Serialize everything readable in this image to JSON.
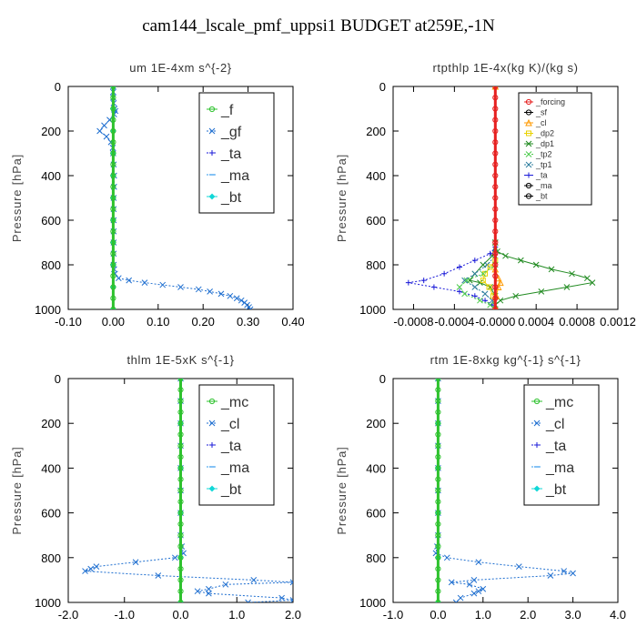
{
  "figure_title": "cam144_lscale_pmf_uppsi1  BUDGET at259E,-1N",
  "chart_data": [
    {
      "id": "um",
      "type": "line",
      "title": "um   1E-4xm s^{-2}",
      "ylabel": "Pressure [hPa]",
      "xlim": [
        -0.1,
        0.4
      ],
      "ylim": [
        1000,
        0
      ],
      "xticks": [
        "-0.10",
        "0.00",
        "0.10",
        "0.20",
        "0.30",
        "0.40"
      ],
      "xtick_values": [
        -0.1,
        0.0,
        0.1,
        0.2,
        0.3,
        0.4
      ],
      "yticks": [
        0,
        200,
        400,
        600,
        800,
        1000
      ],
      "legend": {
        "position": "top-right",
        "size": "large",
        "entries": [
          "_f",
          "_gf",
          "_ta",
          "_ma",
          "_bt"
        ]
      },
      "series": [
        {
          "name": "_gf",
          "color": "#1f6fd0",
          "marker": "x",
          "dashed": true,
          "y": [
            0,
            25,
            50,
            75,
            100,
            110,
            125,
            150,
            175,
            200,
            225,
            250,
            275,
            300,
            350,
            400,
            450,
            500,
            550,
            600,
            650,
            700,
            750,
            800,
            820,
            840,
            860,
            870,
            880,
            890,
            900,
            910,
            920,
            930,
            940,
            950,
            960,
            970,
            980,
            990,
            1000
          ],
          "x": [
            0.0,
            0.0,
            0.0,
            0.001,
            0.003,
            0.005,
            0.002,
            -0.008,
            -0.02,
            -0.03,
            -0.015,
            -0.005,
            -0.001,
            0.0,
            0.001,
            0.002,
            0.002,
            0.001,
            0.001,
            0.001,
            0.001,
            0.001,
            0.001,
            0.001,
            0.002,
            0.004,
            0.012,
            0.035,
            0.07,
            0.11,
            0.15,
            0.19,
            0.215,
            0.24,
            0.26,
            0.275,
            0.285,
            0.292,
            0.298,
            0.302,
            0.305
          ]
        },
        {
          "name": "_ta",
          "color": "#1a1ad8",
          "marker": "plus",
          "dashed": true,
          "y": [
            0,
            100,
            200,
            300,
            400,
            500,
            600,
            700,
            800,
            900,
            1000
          ],
          "x": [
            0,
            0,
            0,
            0,
            0,
            0,
            0,
            0,
            0,
            0,
            0
          ]
        },
        {
          "name": "_ma",
          "color": "#3399ee",
          "marker": "dash",
          "dashed": true,
          "y": [
            0,
            100,
            200,
            300,
            400,
            500,
            600,
            700,
            800,
            900,
            1000
          ],
          "x": [
            0,
            0,
            0,
            0,
            0,
            0,
            0,
            0,
            0,
            0,
            0
          ]
        },
        {
          "name": "_bt",
          "color": "#11d7d7",
          "marker": "diamond",
          "dashed": false,
          "y": [
            0,
            100,
            200,
            300,
            400,
            500,
            600,
            700,
            800,
            900,
            1000
          ],
          "x": [
            0,
            0,
            0,
            0,
            0,
            0,
            0,
            0,
            0,
            0,
            0
          ]
        },
        {
          "name": "_f",
          "color": "#2ec22e",
          "marker": "circle",
          "dashed": false,
          "width": 3,
          "y": [
            0,
            50,
            100,
            150,
            200,
            250,
            300,
            350,
            400,
            450,
            500,
            550,
            600,
            650,
            700,
            750,
            800,
            850,
            900,
            950,
            1000
          ],
          "x": [
            0,
            0,
            0,
            0,
            0,
            0,
            0,
            0,
            0,
            0,
            0,
            0,
            0,
            0,
            0,
            0,
            0,
            0,
            0,
            0,
            0
          ]
        }
      ]
    },
    {
      "id": "rtpthlp",
      "type": "line",
      "title": "rtpthlp   1E-4x(kg K)/(kg s)",
      "ylabel": "Pressure [hPa]",
      "xlim": [
        -0.001,
        0.0012
      ],
      "ylim": [
        1000,
        0
      ],
      "xticks": [
        "-0.0008",
        "-0.0004",
        "-0.0000",
        "0.0004",
        "0.0008",
        "0.0012"
      ],
      "xtick_values": [
        -0.0008,
        -0.0004,
        0.0,
        0.0004,
        0.0008,
        0.0012
      ],
      "yticks": [
        0,
        200,
        400,
        600,
        800,
        1000
      ],
      "legend": {
        "position": "top-right",
        "size": "small",
        "entries": [
          "_forcing",
          "_sf",
          "_cl",
          "_dp2",
          "_dp1",
          "_tp2",
          "_tp1",
          "_ta",
          "_ma",
          "_bt"
        ]
      },
      "series": [
        {
          "name": "_dp1",
          "color": "#228b22",
          "marker": "x",
          "dashed": false,
          "y": [
            0,
            700,
            740,
            760,
            780,
            800,
            820,
            840,
            860,
            880,
            900,
            920,
            940,
            960,
            980,
            1000
          ],
          "x": [
            0,
            0,
            2e-05,
            0.0001,
            0.00025,
            0.0004,
            0.00055,
            0.00075,
            0.0009,
            0.00095,
            0.0007,
            0.00045,
            0.0002,
            5e-05,
            0,
            0
          ]
        },
        {
          "name": "_dp1",
          "color": "#228b22",
          "marker": "x",
          "dashed": false,
          "y": [
            0,
            700,
            760,
            800,
            840,
            870,
            880,
            900,
            940,
            1000
          ],
          "x": [
            0,
            0,
            -3e-05,
            -0.00012,
            -0.0002,
            -0.00025,
            -0.00015,
            -5e-05,
            0,
            0
          ]
        },
        {
          "name": "_ta",
          "color": "#1a1ad8",
          "marker": "plus",
          "dashed": true,
          "y": [
            0,
            720,
            750,
            780,
            810,
            840,
            870,
            880,
            900,
            920,
            940,
            960,
            980,
            1000
          ],
          "x": [
            0,
            0,
            -5e-05,
            -0.0002,
            -0.00035,
            -0.0005,
            -0.0007,
            -0.00085,
            -0.0006,
            -0.00035,
            -0.0002,
            -0.0001,
            -3e-05,
            0
          ]
        },
        {
          "name": "_tp1",
          "color": "#2e7d9e",
          "marker": "x",
          "dashed": true,
          "y": [
            0,
            760,
            800,
            840,
            870,
            900,
            930,
            960,
            1000
          ],
          "x": [
            0,
            0,
            -8e-05,
            -0.0002,
            -0.0003,
            -0.0002,
            -0.0001,
            -3e-05,
            0
          ]
        },
        {
          "name": "_dp2",
          "color": "#e8d200",
          "marker": "square",
          "dashed": false,
          "y": [
            0,
            780,
            810,
            840,
            870,
            900,
            940,
            1000
          ],
          "x": [
            0,
            0,
            -5e-05,
            -0.0001,
            -0.00012,
            -6e-05,
            -2e-05,
            0
          ]
        },
        {
          "name": "_tp2",
          "color": "#4ccc4c",
          "marker": "x",
          "dashed": true,
          "y": [
            0,
            800,
            840,
            870,
            900,
            930,
            960,
            980,
            1000
          ],
          "x": [
            0,
            0,
            -0.00012,
            -0.00028,
            -0.00035,
            -0.0003,
            -0.00015,
            -5e-05,
            0
          ]
        },
        {
          "name": "_cl",
          "color": "#ff9900",
          "marker": "triangle",
          "dashed": false,
          "y": [
            0,
            820,
            860,
            880,
            900,
            940,
            1000
          ],
          "x": [
            0,
            0,
            3e-05,
            5e-05,
            3e-05,
            1e-05,
            0
          ]
        },
        {
          "name": "_forcing",
          "color": "#e62020",
          "marker": "circle",
          "dashed": false,
          "width": 3,
          "y": [
            0,
            50,
            100,
            150,
            200,
            250,
            300,
            350,
            400,
            450,
            500,
            550,
            600,
            650,
            700,
            750,
            800,
            850,
            900,
            950,
            1000
          ],
          "x": [
            0,
            0,
            0,
            0,
            0,
            0,
            0,
            0,
            0,
            0,
            0,
            0,
            0,
            0,
            0,
            0,
            0,
            0,
            0,
            0,
            0
          ]
        }
      ]
    },
    {
      "id": "thlm",
      "type": "line",
      "title": "thlm   1E-5xK s^{-1}",
      "ylabel": "Pressure [hPa]",
      "xlim": [
        -2.0,
        2.0
      ],
      "ylim": [
        1000,
        0
      ],
      "xticks": [
        "-2.0",
        "-1.0",
        "0.0",
        "1.0",
        "2.0"
      ],
      "xtick_values": [
        -2.0,
        -1.0,
        0.0,
        1.0,
        2.0
      ],
      "yticks": [
        0,
        200,
        400,
        600,
        800,
        1000
      ],
      "legend": {
        "position": "top-right",
        "size": "large",
        "entries": [
          "_mc",
          "_cl",
          "_ta",
          "_ma",
          "_bt"
        ]
      },
      "series": [
        {
          "name": "_cl",
          "color": "#1f6fd0",
          "marker": "x",
          "dashed": true,
          "y": [
            0,
            100,
            200,
            300,
            400,
            500,
            600,
            700,
            750,
            780,
            800,
            820,
            840,
            850,
            860,
            880,
            900,
            910,
            920,
            940,
            950,
            960,
            980,
            990,
            1000
          ],
          "x": [
            0,
            0,
            0,
            0,
            0,
            0,
            0,
            0,
            0.02,
            0.05,
            -0.1,
            -0.8,
            -1.5,
            -1.6,
            -1.7,
            -0.4,
            1.3,
            2.0,
            0.8,
            0.5,
            0.3,
            0.5,
            1.8,
            2.0,
            1.2
          ]
        },
        {
          "name": "_ta",
          "color": "#1a1ad8",
          "marker": "plus",
          "dashed": true,
          "y": [
            0,
            200,
            400,
            600,
            800,
            1000
          ],
          "x": [
            0,
            0,
            0,
            0,
            0,
            0
          ]
        },
        {
          "name": "_ma",
          "color": "#3399ee",
          "marker": "dash",
          "dashed": true,
          "y": [
            0,
            200,
            400,
            600,
            800,
            1000
          ],
          "x": [
            0,
            0,
            0,
            0,
            0,
            0
          ]
        },
        {
          "name": "_bt",
          "color": "#11d7d7",
          "marker": "diamond",
          "dashed": false,
          "y": [
            0,
            200,
            400,
            600,
            800,
            1000
          ],
          "x": [
            0,
            0,
            0,
            0,
            0,
            0
          ]
        },
        {
          "name": "_mc",
          "color": "#2ec22e",
          "marker": "circle",
          "dashed": false,
          "width": 3,
          "y": [
            0,
            50,
            100,
            150,
            200,
            250,
            300,
            350,
            400,
            450,
            500,
            550,
            600,
            650,
            700,
            750,
            800,
            850,
            900,
            950,
            1000
          ],
          "x": [
            0,
            0,
            0,
            0,
            0,
            0,
            0,
            0,
            0,
            0,
            0,
            0,
            0,
            0,
            0,
            0,
            0,
            0,
            0,
            0,
            0
          ]
        }
      ]
    },
    {
      "id": "rtm",
      "type": "line",
      "title": "rtm   1E-8xkg kg^{-1} s^{-1}",
      "ylabel": "Pressure [hPa]",
      "xlim": [
        -1.0,
        4.0
      ],
      "ylim": [
        1000,
        0
      ],
      "xticks": [
        "-1.0",
        "0.0",
        "1.0",
        "2.0",
        "3.0",
        "4.0"
      ],
      "xtick_values": [
        -1.0,
        0.0,
        1.0,
        2.0,
        3.0,
        4.0
      ],
      "yticks": [
        0,
        200,
        400,
        600,
        800,
        1000
      ],
      "legend": {
        "position": "top-right",
        "size": "large",
        "entries": [
          "_mc",
          "_cl",
          "_ta",
          "_ma",
          "_bt"
        ]
      },
      "series": [
        {
          "name": "_cl",
          "color": "#1f6fd0",
          "marker": "x",
          "dashed": true,
          "y": [
            0,
            100,
            200,
            300,
            400,
            500,
            600,
            700,
            750,
            780,
            800,
            820,
            840,
            860,
            870,
            880,
            900,
            910,
            920,
            940,
            950,
            960,
            980,
            1000
          ],
          "x": [
            0,
            0,
            0,
            0,
            0,
            0,
            0,
            0,
            -0.02,
            -0.05,
            0.2,
            0.9,
            1.8,
            2.8,
            3.0,
            2.5,
            0.8,
            0.3,
            0.7,
            1.0,
            0.9,
            0.8,
            0.5,
            0.4
          ]
        },
        {
          "name": "_ta",
          "color": "#1a1ad8",
          "marker": "plus",
          "dashed": true,
          "y": [
            0,
            200,
            400,
            600,
            800,
            1000
          ],
          "x": [
            0,
            0,
            0,
            0,
            0,
            0
          ]
        },
        {
          "name": "_ma",
          "color": "#3399ee",
          "marker": "dash",
          "dashed": true,
          "y": [
            0,
            200,
            400,
            600,
            800,
            1000
          ],
          "x": [
            0,
            0,
            0,
            0,
            0,
            0
          ]
        },
        {
          "name": "_bt",
          "color": "#11d7d7",
          "marker": "diamond",
          "dashed": false,
          "y": [
            0,
            200,
            400,
            600,
            800,
            1000
          ],
          "x": [
            0,
            0,
            0,
            0,
            0,
            0
          ]
        },
        {
          "name": "_mc",
          "color": "#2ec22e",
          "marker": "circle",
          "dashed": false,
          "width": 3,
          "y": [
            0,
            50,
            100,
            150,
            200,
            250,
            300,
            350,
            400,
            450,
            500,
            550,
            600,
            650,
            700,
            750,
            800,
            850,
            900,
            950,
            1000
          ],
          "x": [
            0,
            0,
            0,
            0,
            0,
            0,
            0,
            0,
            0,
            0,
            0,
            0,
            0,
            0,
            0,
            0,
            0,
            0,
            0,
            0,
            0
          ]
        }
      ]
    }
  ]
}
